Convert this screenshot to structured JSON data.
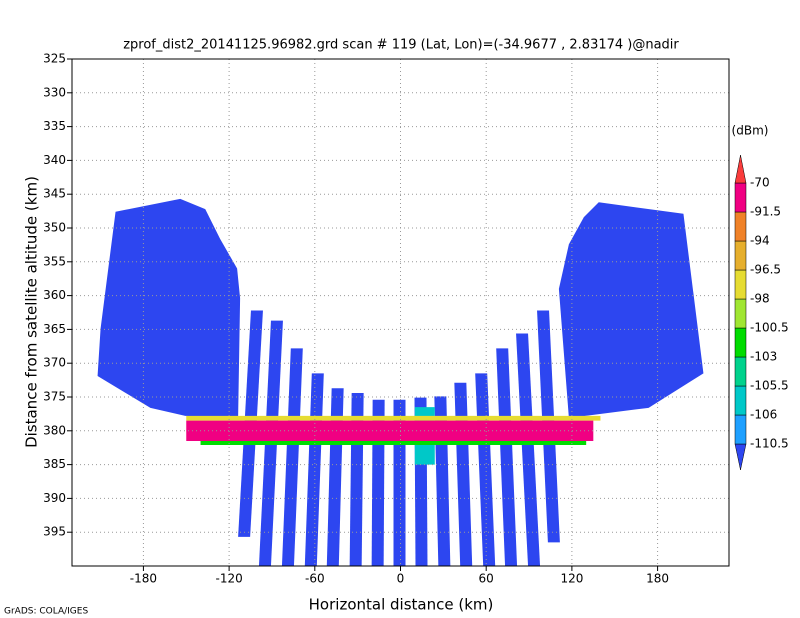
{
  "chart_data": {
    "type": "shaded",
    "title": "zprof_dist2_20141125.96982.grd  scan # 119  (Lat, Lon)=(-34.9677 , 2.83174 )@nadir",
    "xlabel": "Horizontal distance (km)",
    "ylabel": "Distance from satellite altitude (km)",
    "footer": "GrADS: COLA/IGES",
    "xlim": [
      -230,
      230
    ],
    "ylim": [
      325,
      400
    ],
    "invert_y": true,
    "xticks": [
      -180,
      -120,
      -60,
      0,
      60,
      120,
      180
    ],
    "yticks": [
      325,
      330,
      335,
      340,
      345,
      350,
      355,
      360,
      365,
      370,
      375,
      380,
      385,
      390,
      395
    ],
    "grid": true,
    "colorbar": {
      "unit": "(dBm)",
      "levels": [
        -110.5,
        -106,
        -105.5,
        -103,
        -100.5,
        -98,
        -96.5,
        -94,
        -91.5,
        -70
      ],
      "colors": [
        "#2d46f0",
        "#1ea0ff",
        "#00c8c8",
        "#00d28c",
        "#00dc00",
        "#a0e632",
        "#e6dc32",
        "#e6af2d",
        "#f08228",
        "#f00082",
        "#fa3c3c"
      ]
    },
    "regions": [
      {
        "polygon": [
          [
            -199.5,
            347.6
          ],
          [
            -154.2,
            345.7
          ],
          [
            -136.7,
            347.2
          ],
          [
            -126.3,
            351.6
          ],
          [
            -114.4,
            356.0
          ],
          [
            -112.3,
            360.4
          ],
          [
            -113.7,
            378.1
          ],
          [
            -150.7,
            377.8
          ],
          [
            -175.1,
            376.6
          ],
          [
            -212.1,
            371.9
          ],
          [
            -210.0,
            364.9
          ]
        ],
        "value": -112
      },
      {
        "polygon": [
          [
            138.8,
            346.2
          ],
          [
            198.1,
            347.9
          ],
          [
            212.1,
            371.5
          ],
          [
            173.7,
            376.6
          ],
          [
            117.9,
            378.1
          ],
          [
            110.9,
            359.0
          ],
          [
            117.9,
            352.4
          ],
          [
            128.4,
            348.4
          ]
        ],
        "value": -112
      },
      {
        "polygon": [
          [
            -104.7,
            362.2
          ],
          [
            -96.3,
            362.2
          ],
          [
            -105.3,
            395.7
          ],
          [
            -113.7,
            395.7
          ]
        ],
        "value": -112
      },
      {
        "polygon": [
          [
            -90.7,
            363.7
          ],
          [
            -82.3,
            363.7
          ],
          [
            -90.7,
            400
          ],
          [
            -99.1,
            400
          ]
        ],
        "value": -112
      },
      {
        "polygon": [
          [
            -76.8,
            367.8
          ],
          [
            -68.4,
            367.8
          ],
          [
            -74.6,
            400
          ],
          [
            -83.0,
            400
          ]
        ],
        "value": -112
      },
      {
        "polygon": [
          [
            -62.1,
            371.5
          ],
          [
            -53.7,
            371.5
          ],
          [
            -58.6,
            400
          ],
          [
            -67.0,
            400
          ]
        ],
        "value": -112
      },
      {
        "polygon": [
          [
            -48.2,
            373.7
          ],
          [
            -39.8,
            373.7
          ],
          [
            -43.2,
            400
          ],
          [
            -51.6,
            400
          ]
        ],
        "value": -112
      },
      {
        "polygon": [
          [
            -34.2,
            374.4
          ],
          [
            -25.8,
            374.4
          ],
          [
            -27.2,
            400
          ],
          [
            -35.6,
            400
          ]
        ],
        "value": -112
      },
      {
        "polygon": [
          [
            -19.5,
            375.4
          ],
          [
            -11.1,
            375.4
          ],
          [
            -11.8,
            400
          ],
          [
            -20.2,
            400
          ]
        ],
        "value": -112
      },
      {
        "polygon": [
          [
            -4.9,
            375.4
          ],
          [
            3.5,
            375.4
          ],
          [
            3.5,
            400
          ],
          [
            -4.9,
            400
          ]
        ],
        "value": -112
      },
      {
        "polygon": [
          [
            9.8,
            375.1
          ],
          [
            18.2,
            375.1
          ],
          [
            18.9,
            400
          ],
          [
            10.5,
            400
          ]
        ],
        "value": -112
      },
      {
        "polygon": [
          [
            23.7,
            374.9
          ],
          [
            32.1,
            374.9
          ],
          [
            34.9,
            400
          ],
          [
            26.5,
            400
          ]
        ],
        "value": -112
      },
      {
        "polygon": [
          [
            37.7,
            372.9
          ],
          [
            46.1,
            372.9
          ],
          [
            50.2,
            400
          ],
          [
            41.8,
            400
          ]
        ],
        "value": -112
      },
      {
        "polygon": [
          [
            52.3,
            371.5
          ],
          [
            60.7,
            371.5
          ],
          [
            66.3,
            400
          ],
          [
            57.9,
            400
          ]
        ],
        "value": -112
      },
      {
        "polygon": [
          [
            67.0,
            367.8
          ],
          [
            75.4,
            367.8
          ],
          [
            81.6,
            400
          ],
          [
            73.2,
            400
          ]
        ],
        "value": -112
      },
      {
        "polygon": [
          [
            80.9,
            365.6
          ],
          [
            89.3,
            365.6
          ],
          [
            97.7,
            400
          ],
          [
            89.3,
            400
          ]
        ],
        "value": -112
      },
      {
        "polygon": [
          [
            95.6,
            362.2
          ],
          [
            104.0,
            362.2
          ],
          [
            111.6,
            396.5
          ],
          [
            103.2,
            396.5
          ]
        ],
        "value": -112
      },
      {
        "polygon": [
          [
            10,
            376.5
          ],
          [
            24,
            376.5
          ],
          [
            24,
            385
          ],
          [
            10,
            385
          ]
        ],
        "value": -106
      },
      {
        "polygon": [
          [
            -150,
            377.8
          ],
          [
            140,
            377.8
          ],
          [
            140,
            378.5
          ],
          [
            -150,
            378.5
          ]
        ],
        "value": -97
      },
      {
        "polygon": [
          [
            -150,
            378.5
          ],
          [
            135,
            378.5
          ],
          [
            135,
            381.5
          ],
          [
            -150,
            381.5
          ]
        ],
        "value": -85
      },
      {
        "polygon": [
          [
            -140,
            381.5
          ],
          [
            130,
            381.5
          ],
          [
            130,
            382.1
          ],
          [
            -140,
            382.1
          ]
        ],
        "value": -102
      }
    ]
  }
}
